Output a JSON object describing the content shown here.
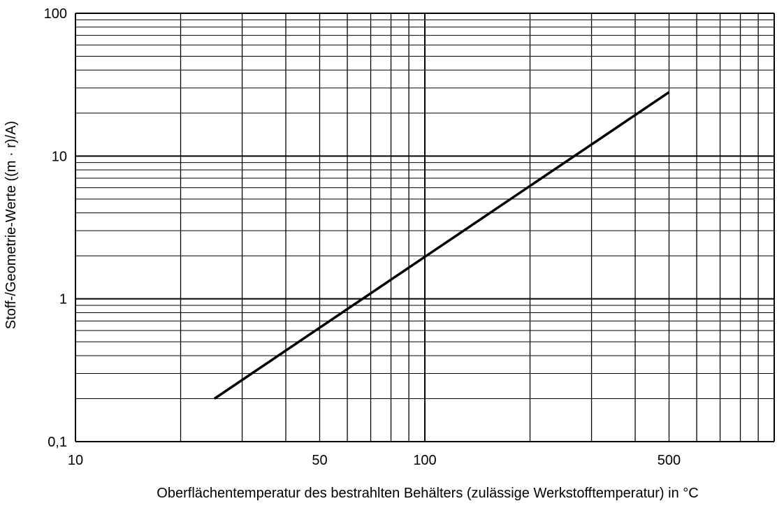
{
  "chart_data": {
    "type": "line",
    "title": "",
    "xlabel": "Oberflächentemperatur des bestrahlten Behälters (zulässige Werkstofftemperatur) in °C",
    "ylabel": "Stoff-/Geometrie-Werte ((m · r)/A)",
    "x_scale": "log",
    "y_scale": "log",
    "xlim": [
      10,
      1000
    ],
    "ylim": [
      0.1,
      100
    ],
    "x_ticks": [
      {
        "value": 10,
        "label": "10"
      },
      {
        "value": 50,
        "label": "50"
      },
      {
        "value": 100,
        "label": "100"
      },
      {
        "value": 500,
        "label": "500"
      }
    ],
    "y_ticks": [
      {
        "value": 0.1,
        "label": "0,1"
      },
      {
        "value": 1,
        "label": "1"
      },
      {
        "value": 10,
        "label": "10"
      },
      {
        "value": 100,
        "label": "100"
      }
    ],
    "grid": true,
    "legend": "none",
    "colors": {
      "line": "#000000",
      "grid": "#000000",
      "background": "#ffffff"
    },
    "series": [
      {
        "x": [
          25,
          500
        ],
        "y": [
          0.2,
          28
        ]
      }
    ]
  }
}
